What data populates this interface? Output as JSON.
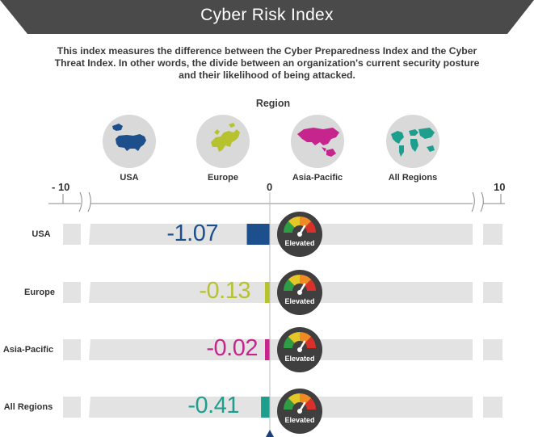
{
  "header": {
    "title": "Cyber Risk Index",
    "description": "This index measures the difference between the Cyber Preparedness Index and the Cyber Threat Index. In other words, the divide between an organization's current security posture and their likelihood of being attacked."
  },
  "region_heading": "Region",
  "regions": [
    {
      "label": "USA",
      "icon": "usa-map-icon"
    },
    {
      "label": "Europe",
      "icon": "europe-map-icon"
    },
    {
      "label": "Asia-Pacific",
      "icon": "asia-pacific-map-icon"
    },
    {
      "label": "All Regions",
      "icon": "world-map-icon"
    }
  ],
  "colors": {
    "banner": "#4a4a4a",
    "track": "#e3e3e3",
    "axis": "#1a3f7a",
    "gauge_bg": "#3f3f3f"
  },
  "chart_data": {
    "type": "bar",
    "orientation": "horizontal",
    "xlim": [
      -10,
      10
    ],
    "x_tick_labels": [
      "- 10",
      "0",
      "10"
    ],
    "categories": [
      "USA",
      "Europe",
      "Asia-Pacific",
      "All Regions"
    ],
    "values": [
      -1.07,
      -0.13,
      -0.02,
      -0.41
    ],
    "value_labels": [
      "-1.07",
      "-0.13",
      "-0.02",
      "-0.41"
    ],
    "bar_colors": [
      "#1d4f8c",
      "#b6c22e",
      "#c7258e",
      "#1e9e8c"
    ],
    "risk_status": [
      "Elevated",
      "Elevated",
      "Elevated",
      "Elevated"
    ],
    "axis_breaks": true
  }
}
